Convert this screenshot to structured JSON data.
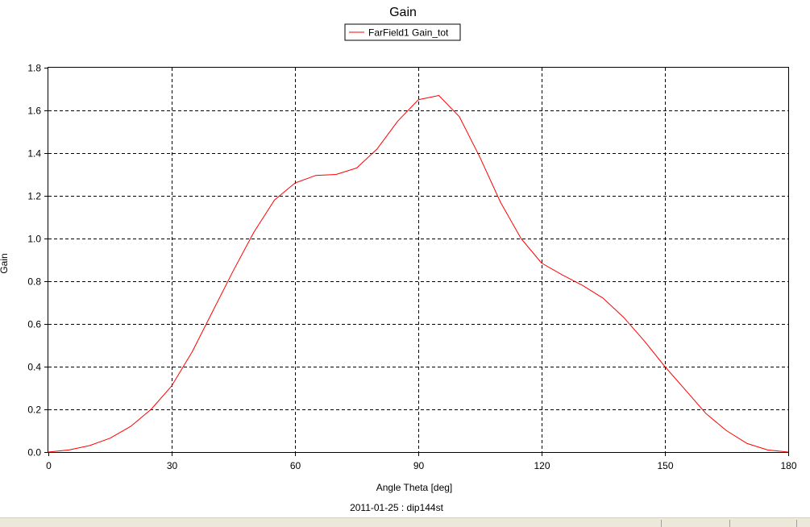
{
  "chart_data": {
    "type": "line",
    "title": "Gain",
    "xlabel": "Angle Theta [deg]",
    "ylabel": "Gain",
    "footer": "2011-01-25 : dip144st",
    "xlim": [
      0,
      180
    ],
    "ylim": [
      0,
      1.8
    ],
    "x_ticks": [
      0,
      30,
      60,
      90,
      120,
      150,
      180
    ],
    "y_ticks": [
      0.0,
      0.2,
      0.4,
      0.6,
      0.8,
      1.0,
      1.2,
      1.4,
      1.6,
      1.8
    ],
    "y_tick_labels": [
      "0.0",
      "0.2",
      "0.4",
      "0.6",
      "0.8",
      "1.0",
      "1.2",
      "1.4",
      "1.6",
      "1.8"
    ],
    "x_tick_labels": [
      "0",
      "30",
      "60",
      "90",
      "120",
      "150",
      "180"
    ],
    "grid": true,
    "legend_position": "top-center",
    "series": [
      {
        "name": "FarField1 Gain_tot",
        "color": "#ff0000",
        "x": [
          0,
          5,
          10,
          15,
          20,
          25,
          30,
          35,
          40,
          45,
          50,
          55,
          60,
          65,
          70,
          75,
          80,
          85,
          90,
          95,
          100,
          105,
          110,
          115,
          120,
          125,
          130,
          135,
          140,
          145,
          150,
          155,
          160,
          165,
          170,
          175,
          180
        ],
        "y": [
          0.0,
          0.01,
          0.03,
          0.065,
          0.12,
          0.2,
          0.31,
          0.47,
          0.66,
          0.85,
          1.03,
          1.18,
          1.26,
          1.295,
          1.3,
          1.33,
          1.42,
          1.55,
          1.65,
          1.67,
          1.57,
          1.38,
          1.17,
          1.0,
          0.885,
          0.83,
          0.78,
          0.72,
          0.63,
          0.52,
          0.4,
          0.29,
          0.18,
          0.1,
          0.04,
          0.01,
          0.0
        ]
      }
    ]
  }
}
